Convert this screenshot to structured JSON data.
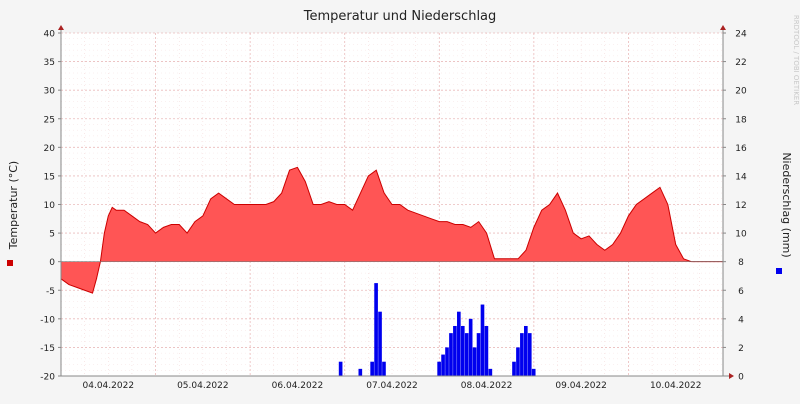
{
  "chart_data": {
    "type": "area",
    "title": "Temperatur und Niederschlag",
    "ylabel_left": "Temperatur (°C)",
    "ylabel_right": "Niederschlag (mm)",
    "watermark": "RRDTOOL / TOBI OETIKER",
    "date_labels": [
      "04.04.2022",
      "05.04.2022",
      "06.04.2022",
      "07.04.2022",
      "08.04.2022",
      "09.04.2022",
      "10.04.2022"
    ],
    "y_left": {
      "min": -20,
      "max": 40,
      "ticks": [
        "-20",
        "-15",
        "-10",
        "-5",
        "0",
        "5",
        "10",
        "15",
        "20",
        "25",
        "30",
        "35",
        "40"
      ]
    },
    "y_right": {
      "min": 0,
      "max": 24,
      "ticks": [
        "0",
        "2",
        "4",
        "6",
        "8",
        "10",
        "12",
        "14",
        "16",
        "18",
        "20",
        "22",
        "24"
      ]
    },
    "colors": {
      "temperature": "#ff5555",
      "temperature_line": "#cc0000",
      "precipitation": "#0000ee",
      "grid": "#e8b4b4",
      "axis": "#888888",
      "text": "#222222",
      "background": "#f5f5f5",
      "plot": "#ffffff"
    },
    "x_range_hours": [
      0,
      168
    ],
    "temperature": {
      "name": "Temperatur",
      "x_hours": [
        0,
        2,
        4,
        6,
        8,
        9,
        10,
        11,
        12,
        13,
        14,
        16,
        18,
        20,
        22,
        24,
        26,
        28,
        30,
        32,
        34,
        36,
        38,
        40,
        42,
        44,
        46,
        48,
        50,
        52,
        54,
        56,
        58,
        60,
        62,
        64,
        66,
        68,
        70,
        72,
        74,
        76,
        78,
        80,
        82,
        84,
        86,
        88,
        90,
        92,
        94,
        96,
        98,
        100,
        102,
        104,
        106,
        108,
        110,
        112,
        114,
        116,
        118,
        120,
        122,
        124,
        126,
        128,
        130,
        132,
        134,
        136,
        138,
        140,
        142,
        144,
        146,
        148,
        150,
        152,
        154,
        156,
        158,
        160,
        162,
        164,
        166,
        168
      ],
      "values": [
        -3,
        -4,
        -4.5,
        -5,
        -5.5,
        -3,
        0,
        5,
        8,
        9.5,
        9,
        9,
        8,
        7,
        6.5,
        5,
        6,
        6.5,
        6.5,
        5,
        7,
        8,
        11,
        12,
        11,
        10,
        10,
        10,
        10,
        10,
        10.5,
        12,
        16,
        16.5,
        14,
        10,
        10,
        10.5,
        10,
        10,
        9,
        12,
        15,
        16,
        12,
        10,
        10,
        9,
        8.5,
        8,
        7.5,
        7,
        7,
        6.5,
        6.5,
        6,
        7,
        5,
        0.5,
        0.5,
        0.5,
        0.5,
        2,
        6,
        9,
        10,
        12,
        9,
        5,
        4,
        4.5,
        3,
        2,
        3,
        5,
        8,
        10,
        11,
        12,
        13,
        10,
        3,
        0.5,
        0,
        0,
        0,
        0,
        0
      ]
    },
    "precipitation": {
      "name": "Niederschlag",
      "x_hours": [
        71,
        76,
        79,
        80,
        81,
        82,
        96,
        97,
        98,
        99,
        100,
        101,
        102,
        103,
        104,
        105,
        106,
        107,
        108,
        109,
        115,
        116,
        117,
        118,
        119,
        120
      ],
      "values": [
        1,
        0.5,
        1,
        6.5,
        4.5,
        1,
        1,
        1.5,
        2,
        3,
        3.5,
        4.5,
        3.5,
        3,
        4,
        2,
        3,
        5,
        3.5,
        0.5,
        1,
        2,
        3,
        3.5,
        3,
        0.5
      ]
    }
  }
}
